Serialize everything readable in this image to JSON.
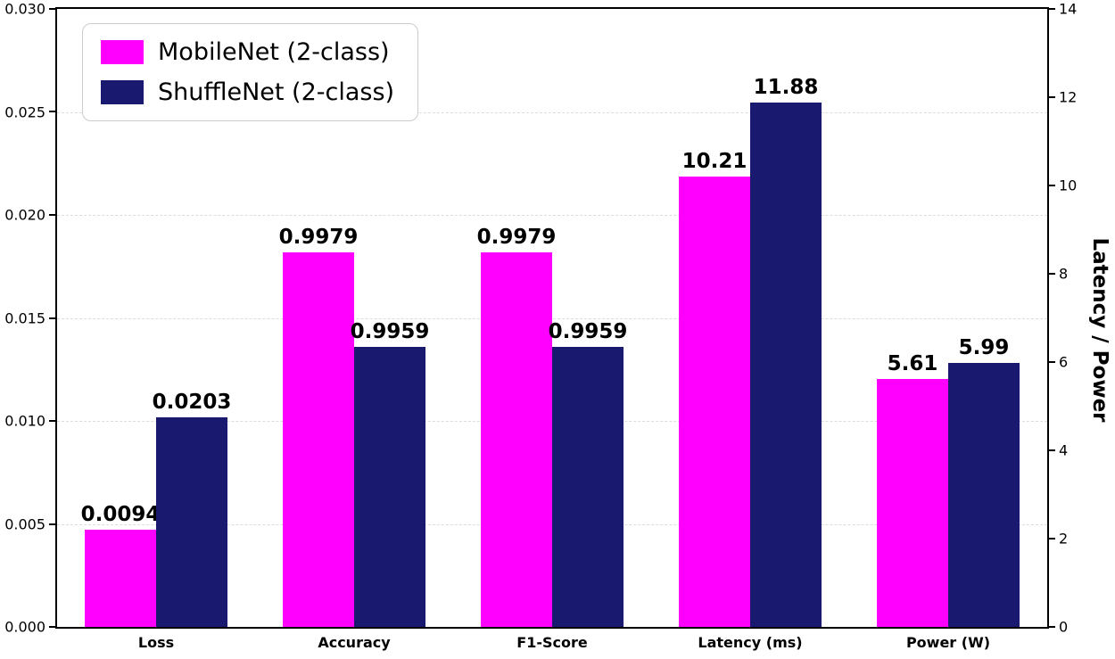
{
  "chart_data": {
    "type": "bar",
    "title": "",
    "categories": [
      "Loss",
      "Accuracy",
      "F1-Score",
      "Latency (ms)",
      "Power (W)"
    ],
    "series": [
      {
        "name": "MobileNet (2-class)",
        "color": "#FF00FF",
        "values": [
          0.0094,
          0.9979,
          0.9979,
          10.21,
          5.61
        ],
        "labels": [
          "0.0094",
          "0.9979",
          "0.9979",
          "10.21",
          "5.61"
        ],
        "plot_heights_right_axis": [
          2.2,
          8.48,
          8.48,
          10.21,
          5.61
        ]
      },
      {
        "name": "ShuffleNet (2-class)",
        "color": "#191970",
        "values": [
          0.0203,
          0.9959,
          0.9959,
          11.88,
          5.99
        ],
        "labels": [
          "0.0203",
          "0.9959",
          "0.9959",
          "11.88",
          "5.99"
        ],
        "plot_heights_right_axis": [
          4.74,
          6.34,
          6.34,
          11.88,
          5.99
        ]
      }
    ],
    "left_axis": {
      "label": "",
      "ticks": [
        "0.030",
        "0.025",
        "0.020",
        "0.015",
        "0.010",
        "0.005",
        "0.000"
      ],
      "range": [
        0,
        0.03
      ]
    },
    "right_axis": {
      "label": "Latency / Power",
      "ticks": [
        "14",
        "12",
        "10",
        "8",
        "6",
        "4",
        "2",
        "0"
      ],
      "range": [
        0,
        14
      ]
    },
    "grid": "horizontal dashed lines at left-axis ticks",
    "legend_position": "upper left"
  }
}
